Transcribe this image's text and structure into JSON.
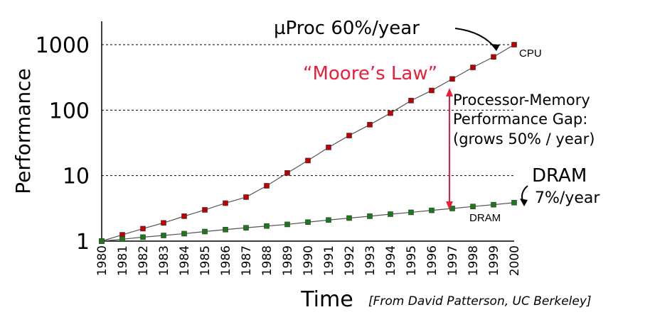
{
  "chart_data": {
    "type": "line",
    "y_scale": "log",
    "ylim": [
      1,
      1000
    ],
    "ylabel": "Performance",
    "xlabel": "Time",
    "y_ticks": [
      "1",
      "10",
      "100",
      "1000"
    ],
    "categories": [
      "1980",
      "1981",
      "1982",
      "1983",
      "1984",
      "1985",
      "1986",
      "1987",
      "1988",
      "1989",
      "1990",
      "1991",
      "1992",
      "1993",
      "1994",
      "1995",
      "1996",
      "1997",
      "1998",
      "1999",
      "2000"
    ],
    "series": [
      {
        "name": "CPU",
        "color": "#c00000",
        "x": [
          "1980",
          "1981",
          "1982",
          "1983",
          "1984",
          "1985",
          "1986",
          "1987",
          "1988",
          "1989",
          "1990",
          "1991",
          "1992",
          "1993",
          "1994",
          "1995",
          "1996",
          "1997",
          "1998",
          "1999",
          "2000"
        ],
        "values": [
          1,
          1.25,
          1.55,
          1.9,
          2.4,
          3.0,
          3.8,
          4.7,
          7.0,
          11,
          17,
          27,
          41,
          60,
          90,
          140,
          200,
          300,
          450,
          650,
          1000
        ]
      },
      {
        "name": "DRAM",
        "color": "#1a7a1a",
        "x": [
          "1980",
          "1981",
          "1982",
          "1983",
          "1984",
          "1985",
          "1986",
          "1987",
          "1988",
          "1989",
          "1990",
          "1991",
          "1992",
          "1993",
          "1994",
          "1995",
          "1996",
          "1997",
          "1998",
          "1999",
          "2000"
        ],
        "values": [
          1,
          1.07,
          1.15,
          1.22,
          1.3,
          1.4,
          1.5,
          1.6,
          1.7,
          1.8,
          1.95,
          2.1,
          2.25,
          2.4,
          2.58,
          2.75,
          2.95,
          3.15,
          3.38,
          3.6,
          3.87
        ]
      }
    ],
    "annotations": {
      "uproc": "µProc 60%/year",
      "moore": "“Moore’s Law”",
      "gap": [
        "Processor-Memory",
        "Performance Gap:",
        "(grows 50% / year)"
      ],
      "dram_big": "DRAM",
      "dram_rate": "7%/year",
      "source": "[From David Patterson, UC Berkeley]"
    }
  }
}
